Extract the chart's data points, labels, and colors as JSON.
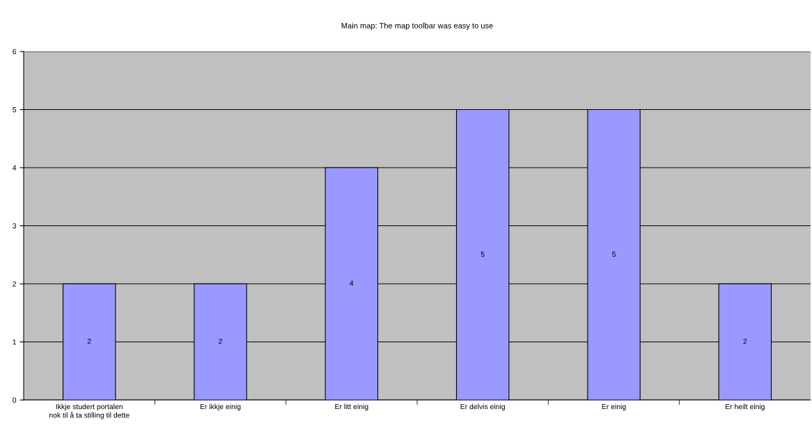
{
  "chart_data": {
    "type": "bar",
    "title": "Main map: The map toolbar was easy to use",
    "categories": [
      "Ikkje studert portalen\nnok til å ta stilling til dette",
      "Er ikkje einig",
      "Er litt einig",
      "Er delvis einig",
      "Er einig",
      "Er heilt einig"
    ],
    "values": [
      2,
      2,
      4,
      5,
      5,
      2
    ],
    "color": "#9999ff",
    "ylim": [
      0,
      6
    ],
    "yticks": [
      0,
      1,
      2,
      3,
      4,
      5,
      6
    ],
    "grid": "y",
    "data_labels": true
  }
}
